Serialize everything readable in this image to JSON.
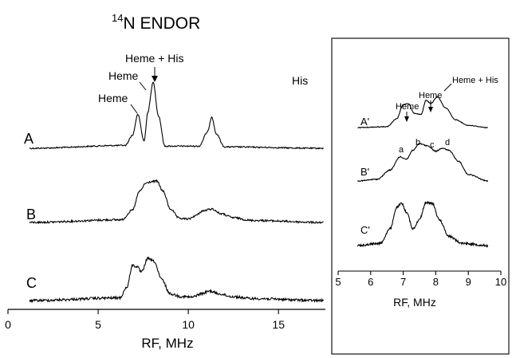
{
  "title": {
    "sup": "14",
    "text": "N ENDOR"
  },
  "chart_data": [
    {
      "type": "line",
      "panel": "main",
      "xlabel": "RF, MHz",
      "xlim": [
        0,
        17.6
      ],
      "xticks": [
        0,
        5,
        10,
        15
      ],
      "grid": false,
      "series": [
        {
          "name": "A",
          "x": [
            1.2,
            6.5,
            6.9,
            7.2,
            7.55,
            7.75,
            8.05,
            8.35,
            8.7,
            10.6,
            11.05,
            11.3,
            11.55,
            12.0,
            17.5
          ],
          "y": [
            0.0,
            0.04,
            0.18,
            0.47,
            0.1,
            0.5,
            0.92,
            0.45,
            0.03,
            0.03,
            0.22,
            0.44,
            0.2,
            0.02,
            0.0
          ]
        },
        {
          "name": "B",
          "x": [
            1.2,
            6.3,
            6.9,
            7.3,
            7.65,
            7.95,
            8.25,
            8.6,
            9.0,
            9.5,
            10.0,
            10.4,
            10.8,
            11.3,
            11.8,
            12.5,
            13.5,
            17.5
          ],
          "y": [
            0.0,
            0.04,
            0.18,
            0.46,
            0.58,
            0.6,
            0.61,
            0.46,
            0.2,
            0.06,
            0.05,
            0.1,
            0.17,
            0.2,
            0.13,
            0.07,
            0.03,
            0.0
          ]
        },
        {
          "name": "C",
          "x": [
            1.2,
            6.2,
            6.6,
            6.9,
            7.15,
            7.4,
            7.75,
            8.1,
            8.5,
            9.0,
            9.6,
            10.2,
            10.7,
            11.2,
            11.7,
            12.4,
            13.5,
            17.5
          ],
          "y": [
            0.0,
            0.04,
            0.2,
            0.52,
            0.5,
            0.42,
            0.62,
            0.58,
            0.32,
            0.1,
            0.06,
            0.05,
            0.1,
            0.14,
            0.1,
            0.06,
            0.03,
            0.0
          ]
        }
      ],
      "annotations": [
        "Heme + His",
        "Heme",
        "Heme",
        "His"
      ]
    },
    {
      "type": "line",
      "panel": "inset",
      "xlabel": "RF, MHz",
      "xlim": [
        5,
        10
      ],
      "xticks": [
        5,
        6,
        7,
        8,
        9,
        10
      ],
      "grid": false,
      "series": [
        {
          "name": "A'",
          "x": [
            5.6,
            6.5,
            6.8,
            7.0,
            7.15,
            7.35,
            7.55,
            7.7,
            7.85,
            8.05,
            8.3,
            8.6,
            9.0,
            9.6
          ],
          "y": [
            0.0,
            0.02,
            0.2,
            0.52,
            0.55,
            0.32,
            0.3,
            0.62,
            0.55,
            0.7,
            0.45,
            0.18,
            0.05,
            0.0
          ]
        },
        {
          "name": "B'",
          "x": [
            5.6,
            6.2,
            6.6,
            6.9,
            7.1,
            7.3,
            7.5,
            7.75,
            8.0,
            8.2,
            8.4,
            8.7,
            9.0,
            9.6
          ],
          "y": [
            0.0,
            0.04,
            0.25,
            0.55,
            0.5,
            0.7,
            0.85,
            0.8,
            0.68,
            0.75,
            0.7,
            0.45,
            0.15,
            0.0
          ]
        },
        {
          "name": "C'",
          "x": [
            5.6,
            6.3,
            6.6,
            6.8,
            6.95,
            7.1,
            7.3,
            7.5,
            7.7,
            7.9,
            8.1,
            8.4,
            8.8,
            9.6
          ],
          "y": [
            0.0,
            0.05,
            0.35,
            0.8,
            0.88,
            0.7,
            0.35,
            0.55,
            0.9,
            0.88,
            0.55,
            0.2,
            0.05,
            0.0
          ]
        }
      ],
      "annotations": [
        "Heme + His",
        "Heme",
        "Heme",
        "a",
        "b",
        "c",
        "d"
      ]
    }
  ]
}
